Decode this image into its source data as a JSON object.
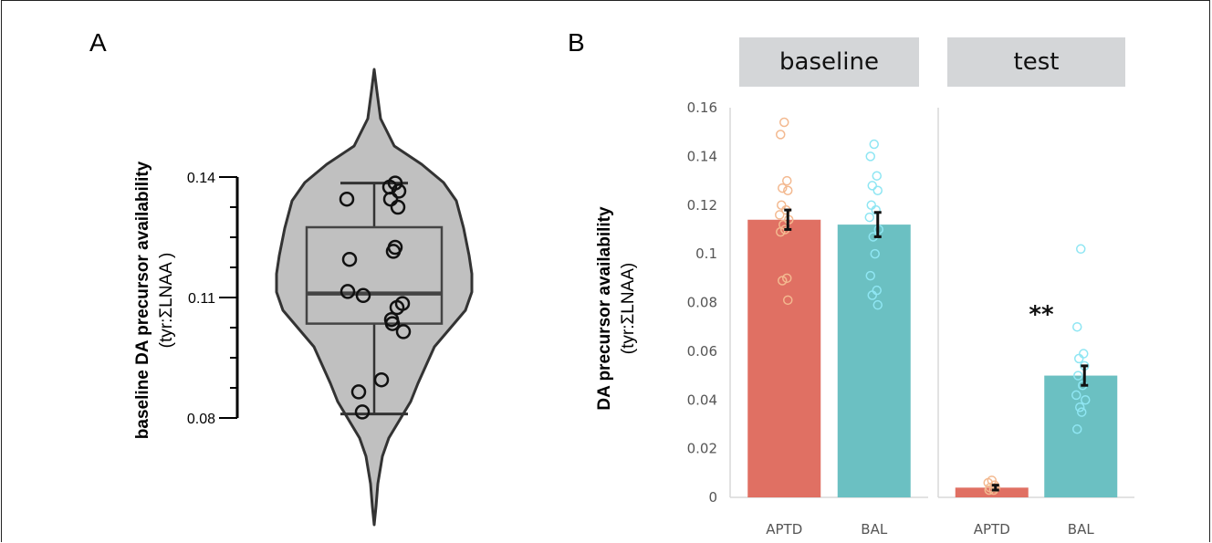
{
  "panel_a": {
    "letter": "A",
    "ylabel_line1": "baseline DA precursor availability",
    "ylabel_line2": "(tyr:ΣLNAA )"
  },
  "panel_b": {
    "letter": "B",
    "ylabel_line1": "DA precursor availability",
    "ylabel_line2": "(tyr:ΣLNAA)",
    "facets": [
      "baseline",
      "test"
    ],
    "significance": "**"
  },
  "colors": {
    "aptd_bar": "#e07063",
    "bal_bar": "#6bc0c2",
    "aptd_points": "#f3b990",
    "bal_points": "#8fe6f3",
    "violin_fill": "#c0c0c0",
    "facet_strip": "#d4d6d8"
  },
  "chart_data": [
    {
      "type": "violin",
      "panel": "A",
      "title": "",
      "ylabel": "baseline DA precursor availability (tyr:ΣLNAA )",
      "yticks": [
        "0.08",
        "0.11",
        "0.14"
      ],
      "ylim": [
        0.08,
        0.14
      ],
      "box": {
        "min": 0.081,
        "q1": 0.1035,
        "median": 0.111,
        "q3": 0.1275,
        "max": 0.1385
      },
      "points": [
        0.1385,
        0.1375,
        0.1365,
        0.1345,
        0.1345,
        0.1325,
        0.1225,
        0.1215,
        0.1195,
        0.1115,
        0.1105,
        0.1085,
        0.1075,
        0.1045,
        0.1035,
        0.1015,
        0.0895,
        0.0865,
        0.0815
      ]
    },
    {
      "type": "bar",
      "panel": "B",
      "ylabel": "DA precursor availability (tyr:ΣLNAA)",
      "yticks": [
        "0",
        "0.02",
        "0.04",
        "0.06",
        "0.08",
        "0.1",
        "0.12",
        "0.14",
        "0.16"
      ],
      "ylim": [
        0,
        0.16
      ],
      "facets": [
        {
          "name": "baseline",
          "categories": [
            "APTD",
            "BAL"
          ],
          "values": [
            0.114,
            0.112
          ],
          "errors": [
            0.004,
            0.005
          ],
          "points": [
            [
              0.154,
              0.149,
              0.13,
              0.127,
              0.126,
              0.12,
              0.118,
              0.116,
              0.114,
              0.112,
              0.11,
              0.109,
              0.09,
              0.089,
              0.081
            ],
            [
              0.145,
              0.14,
              0.132,
              0.128,
              0.126,
              0.12,
              0.118,
              0.115,
              0.11,
              0.107,
              0.1,
              0.091,
              0.085,
              0.083,
              0.079
            ]
          ]
        },
        {
          "name": "test",
          "categories": [
            "APTD",
            "BAL"
          ],
          "values": [
            0.004,
            0.05
          ],
          "errors": [
            0.001,
            0.004
          ],
          "points": [
            [
              0.007,
              0.006,
              0.005,
              0.004,
              0.004,
              0.003,
              0.003
            ],
            [
              0.102,
              0.07,
              0.059,
              0.057,
              0.054,
              0.05,
              0.046,
              0.042,
              0.04,
              0.037,
              0.035,
              0.028
            ]
          ]
        }
      ]
    }
  ]
}
